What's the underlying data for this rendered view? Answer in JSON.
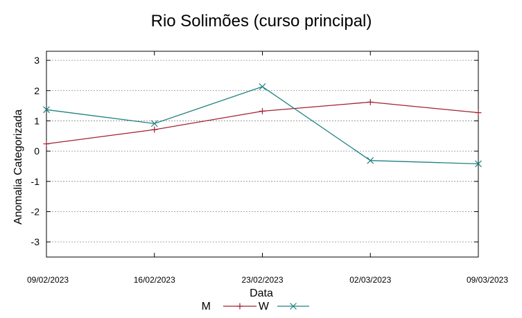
{
  "chart_data": {
    "type": "line",
    "title": "Rio Solimões (curso principal)",
    "xlabel": "Data",
    "ylabel": "Anomalia Categorizada",
    "categories": [
      "09/02/2023",
      "16/02/2023",
      "23/02/2023",
      "02/03/2023",
      "09/03/2023"
    ],
    "yticks": [
      "-3",
      "-2",
      "-1",
      "0",
      "1",
      "2",
      "3"
    ],
    "ylim": [
      -3.5,
      3.3
    ],
    "grid": true,
    "legend_position": "bottom-center",
    "series": [
      {
        "name": "M",
        "color": "#a0202e",
        "marker": "plus",
        "values": [
          0.24,
          0.71,
          1.32,
          1.62,
          1.27
        ]
      },
      {
        "name": "W",
        "color": "#208080",
        "marker": "cross",
        "values": [
          1.37,
          0.91,
          2.13,
          -0.31,
          -0.42
        ]
      }
    ]
  }
}
